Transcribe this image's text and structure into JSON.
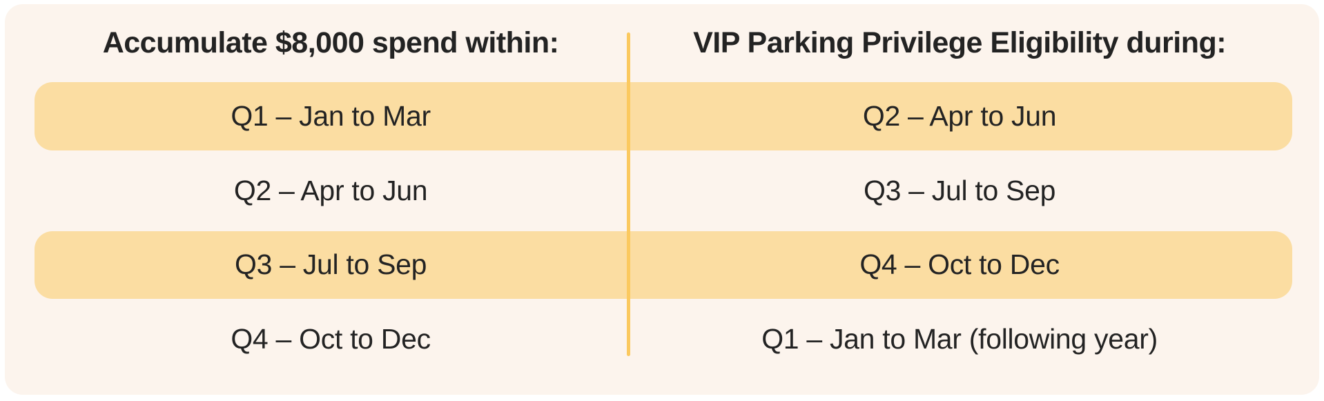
{
  "colors": {
    "page_bg": "#ffffff",
    "card_bg": "#fcf4ed",
    "band": "#fbdda2",
    "divider": "#fbc95f",
    "text": "#232323"
  },
  "table": {
    "headers": {
      "left": "Accumulate $8,000 spend within:",
      "right": "VIP Parking Privilege Eligibility during:"
    },
    "rows": [
      {
        "left": "Q1 – Jan to Mar",
        "right": "Q2 – Apr to Jun",
        "highlighted": true
      },
      {
        "left": "Q2 – Apr to Jun",
        "right": "Q3 – Jul to Sep",
        "highlighted": false
      },
      {
        "left": "Q3 – Jul to Sep",
        "right": "Q4 – Oct to Dec",
        "highlighted": true
      },
      {
        "left": "Q4 – Oct to Dec",
        "right": "Q1 – Jan to Mar (following year)",
        "highlighted": false
      }
    ]
  },
  "chart_data": {
    "type": "table",
    "columns": [
      "Accumulate $8,000 spend within:",
      "VIP Parking Privilege Eligibility during:"
    ],
    "rows": [
      [
        "Q1 – Jan to Mar",
        "Q2 – Apr to Jun"
      ],
      [
        "Q2 – Apr to Jun",
        "Q3 – Jul to Sep"
      ],
      [
        "Q3 – Jul to Sep",
        "Q4 – Oct to Dec"
      ],
      [
        "Q4 – Oct to Dec",
        "Q1 – Jan to Mar (following year)"
      ]
    ],
    "highlighted_rows": [
      0,
      2
    ],
    "title": "",
    "layout": {
      "legend": "none",
      "grid": "off",
      "note": "two-column eligibility table; rows 1 and 3 shaded in orange band; vertical yellow divider between columns"
    }
  }
}
